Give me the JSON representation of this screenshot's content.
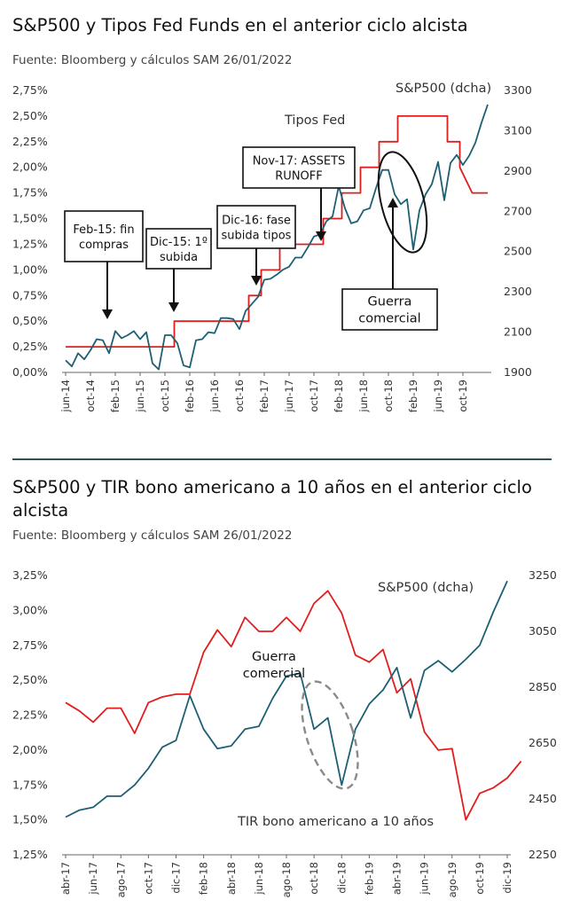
{
  "chart_data": [
    {
      "type": "line",
      "title": "S&P500 y Tipos Fed Funds en el anterior ciclo alcista",
      "source": "Fuente: Bloomberg y cálculos SAM 26/01/2022",
      "x_ticks": [
        "jun-14",
        "oct-14",
        "feb-15",
        "jun-15",
        "oct-15",
        "feb-16",
        "jun-16",
        "oct-16",
        "feb-17",
        "jun-17",
        "oct-17",
        "feb-18",
        "jun-18",
        "oct-18",
        "feb-19",
        "jun-19",
        "oct-19"
      ],
      "y_left": {
        "ticks": [
          "0,00%",
          "0,25%",
          "0,50%",
          "0,75%",
          "1,00%",
          "1,25%",
          "1,50%",
          "1,75%",
          "2,00%",
          "2,25%",
          "2,50%",
          "2,75%"
        ],
        "range": [
          0,
          2.75
        ]
      },
      "y_right": {
        "ticks": [
          "1900",
          "2100",
          "2300",
          "2500",
          "2700",
          "2900",
          "3100",
          "3300"
        ],
        "range": [
          1900,
          3300
        ]
      },
      "series": [
        {
          "name": "Tipos Fed",
          "axis": "left",
          "color": "#e01e1e",
          "points": [
            [
              0,
              0.25
            ],
            [
              17.5,
              0.25
            ],
            [
              17.5,
              0.5
            ],
            [
              29.5,
              0.5
            ],
            [
              29.5,
              0.75
            ],
            [
              31.5,
              0.75
            ],
            [
              31.5,
              1.0
            ],
            [
              34.5,
              1.0
            ],
            [
              34.5,
              1.25
            ],
            [
              41.5,
              1.25
            ],
            [
              41.5,
              1.5
            ],
            [
              44.5,
              1.5
            ],
            [
              44.5,
              1.75
            ],
            [
              47.5,
              1.75
            ],
            [
              47.5,
              2.0
            ],
            [
              50.5,
              2.0
            ],
            [
              50.5,
              2.25
            ],
            [
              53.5,
              2.25
            ],
            [
              53.5,
              2.5
            ],
            [
              61.5,
              2.5
            ],
            [
              61.5,
              2.25
            ],
            [
              63.5,
              2.25
            ],
            [
              63.5,
              2.0
            ],
            [
              65.5,
              1.75
            ],
            [
              68,
              1.75
            ]
          ]
        },
        {
          "name": "S&P500 (dcha)",
          "axis": "right",
          "color": "#1e5f74",
          "points": [
            [
              0,
              1960
            ],
            [
              1,
              1930
            ],
            [
              2,
              1995
            ],
            [
              3,
              1965
            ],
            [
              4,
              2010
            ],
            [
              5,
              2065
            ],
            [
              6,
              2060
            ],
            [
              7,
              1995
            ],
            [
              8,
              2105
            ],
            [
              9,
              2070
            ],
            [
              10,
              2085
            ],
            [
              11,
              2105
            ],
            [
              12,
              2065
            ],
            [
              13,
              2100
            ],
            [
              14,
              1945
            ],
            [
              15,
              1915
            ],
            [
              16,
              2085
            ],
            [
              17,
              2085
            ],
            [
              18,
              2045
            ],
            [
              19,
              1935
            ],
            [
              20,
              1925
            ],
            [
              21,
              2060
            ],
            [
              22,
              2065
            ],
            [
              23,
              2100
            ],
            [
              24,
              2095
            ],
            [
              25,
              2170
            ],
            [
              26,
              2170
            ],
            [
              27,
              2165
            ],
            [
              28,
              2115
            ],
            [
              29,
              2205
            ],
            [
              30,
              2240
            ],
            [
              31,
              2275
            ],
            [
              32,
              2360
            ],
            [
              33,
              2365
            ],
            [
              34,
              2385
            ],
            [
              35,
              2410
            ],
            [
              36,
              2425
            ],
            [
              37,
              2470
            ],
            [
              38,
              2470
            ],
            [
              39,
              2520
            ],
            [
              40,
              2575
            ],
            [
              41,
              2585
            ],
            [
              42,
              2650
            ],
            [
              43,
              2675
            ],
            [
              44,
              2825
            ],
            [
              45,
              2715
            ],
            [
              46,
              2640
            ],
            [
              47,
              2650
            ],
            [
              48,
              2705
            ],
            [
              49,
              2715
            ],
            [
              50,
              2815
            ],
            [
              51,
              2905
            ],
            [
              52,
              2905
            ],
            [
              53,
              2785
            ],
            [
              54,
              2735
            ],
            [
              55,
              2760
            ],
            [
              56,
              2510
            ],
            [
              57,
              2705
            ],
            [
              58,
              2785
            ],
            [
              59,
              2835
            ],
            [
              60,
              2945
            ],
            [
              61,
              2755
            ],
            [
              62,
              2940
            ],
            [
              63,
              2980
            ],
            [
              64,
              2930
            ],
            [
              65,
              2975
            ],
            [
              66,
              3040
            ],
            [
              67,
              3140
            ],
            [
              68,
              3230
            ]
          ]
        }
      ],
      "annotations": [
        {
          "text": [
            "Feb-15: fin",
            "compras"
          ],
          "x": 8,
          "y": 0.5
        },
        {
          "text": [
            "Dic-15: 1º",
            "subida"
          ],
          "x": 18,
          "y": 0.65
        },
        {
          "text": [
            "Dic-16: fase",
            "subida tipos"
          ],
          "x": 30,
          "y": 0.82
        },
        {
          "text": [
            "Nov-17: ASSETS",
            "RUNOFF"
          ],
          "x": 41.5,
          "y": 1.3
        },
        {
          "text": [
            "Guerra",
            "comercial"
          ],
          "x": 54,
          "y": 1.67
        }
      ],
      "series_labels": {
        "sp": "S&P500 (dcha)",
        "fed": "Tipos Fed"
      }
    },
    {
      "type": "line",
      "title": "S&P500 y TIR bono americano a 10 años en el anterior ciclo alcista",
      "source": "Fuente: Bloomberg y cálculos SAM 26/01/2022",
      "x_ticks": [
        "abr-17",
        "jun-17",
        "ago-17",
        "oct-17",
        "dic-17",
        "feb-18",
        "abr-18",
        "jun-18",
        "ago-18",
        "oct-18",
        "dic-18",
        "feb-19",
        "abr-19",
        "jun-19",
        "ago-19",
        "oct-19",
        "dic-19"
      ],
      "y_left": {
        "ticks": [
          "1,25%",
          "1,50%",
          "1,75%",
          "2,00%",
          "2,25%",
          "2,50%",
          "2,75%",
          "3,00%",
          "3,25%"
        ],
        "range": [
          1.25,
          3.25
        ]
      },
      "y_right": {
        "ticks": [
          "2250",
          "2450",
          "2650",
          "2850",
          "3050",
          "3250"
        ],
        "range": [
          2250,
          3250
        ]
      },
      "series": [
        {
          "name": "TIR bono americano a 10 años",
          "axis": "left",
          "color": "#e01e1e",
          "points": [
            [
              0,
              2.34
            ],
            [
              1,
              2.28
            ],
            [
              2,
              2.2
            ],
            [
              3,
              2.3
            ],
            [
              4,
              2.3
            ],
            [
              5,
              2.12
            ],
            [
              6,
              2.34
            ],
            [
              7,
              2.38
            ],
            [
              8,
              2.4
            ],
            [
              9,
              2.4
            ],
            [
              10,
              2.7
            ],
            [
              11,
              2.86
            ],
            [
              12,
              2.74
            ],
            [
              13,
              2.95
            ],
            [
              14,
              2.85
            ],
            [
              15,
              2.85
            ],
            [
              16,
              2.95
            ],
            [
              17,
              2.85
            ],
            [
              18,
              3.05
            ],
            [
              19,
              3.14
            ],
            [
              20,
              2.98
            ],
            [
              21,
              2.68
            ],
            [
              22,
              2.63
            ],
            [
              23,
              2.72
            ],
            [
              24,
              2.41
            ],
            [
              25,
              2.51
            ],
            [
              26,
              2.13
            ],
            [
              27,
              2.0
            ],
            [
              28,
              2.01
            ],
            [
              29,
              1.5
            ],
            [
              30,
              1.69
            ],
            [
              31,
              1.73
            ],
            [
              32,
              1.8
            ],
            [
              33,
              1.92
            ]
          ]
        },
        {
          "name": "S&P500 (dcha)",
          "axis": "right",
          "color": "#1e5f74",
          "points": [
            [
              0,
              2385
            ],
            [
              1,
              2410
            ],
            [
              2,
              2420
            ],
            [
              3,
              2460
            ],
            [
              4,
              2460
            ],
            [
              5,
              2500
            ],
            [
              6,
              2560
            ],
            [
              7,
              2635
            ],
            [
              8,
              2660
            ],
            [
              9,
              2820
            ],
            [
              10,
              2700
            ],
            [
              11,
              2630
            ],
            [
              12,
              2640
            ],
            [
              13,
              2700
            ],
            [
              14,
              2710
            ],
            [
              15,
              2810
            ],
            [
              16,
              2890
            ],
            [
              17,
              2900
            ],
            [
              18,
              2700
            ],
            [
              19,
              2740
            ],
            [
              20,
              2500
            ],
            [
              21,
              2700
            ],
            [
              22,
              2790
            ],
            [
              23,
              2840
            ],
            [
              24,
              2920
            ],
            [
              25,
              2740
            ],
            [
              26,
              2910
            ],
            [
              27,
              2945
            ],
            [
              28,
              2905
            ],
            [
              29,
              2950
            ],
            [
              30,
              3000
            ],
            [
              31,
              3120
            ],
            [
              32,
              3230
            ]
          ]
        }
      ],
      "annotations": [
        {
          "text": [
            "Guerra",
            "comercial"
          ],
          "x": 17,
          "y": 2.54
        }
      ],
      "series_labels": {
        "sp": "S&P500 (dcha)",
        "tir": "TIR bono americano a 10 años"
      }
    }
  ]
}
